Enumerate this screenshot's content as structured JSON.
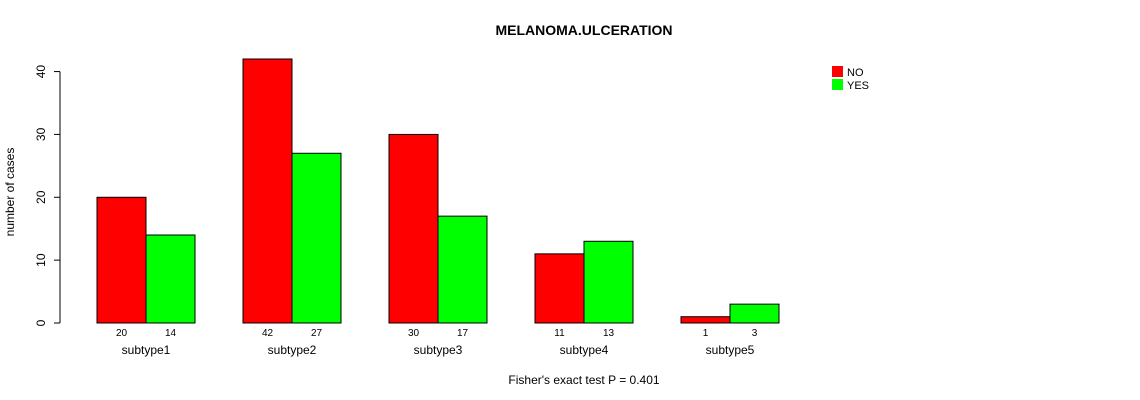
{
  "chart_data": {
    "type": "bar",
    "title": "MELANOMA.ULCERATION",
    "ylabel": "number of cases",
    "xlabel": "",
    "footnote": "Fisher's exact test P = 0.401",
    "categories": [
      "subtype1",
      "subtype2",
      "subtype3",
      "subtype4",
      "subtype5"
    ],
    "series": [
      {
        "name": "NO",
        "color": "#ff0000",
        "values": [
          20,
          42,
          30,
          11,
          1
        ]
      },
      {
        "name": "YES",
        "color": "#00ff00",
        "values": [
          14,
          27,
          17,
          13,
          3
        ]
      }
    ],
    "ylim": [
      0,
      42
    ],
    "yticks": [
      0,
      10,
      20,
      30,
      40
    ],
    "legend_position": "top-right",
    "grid": false
  }
}
